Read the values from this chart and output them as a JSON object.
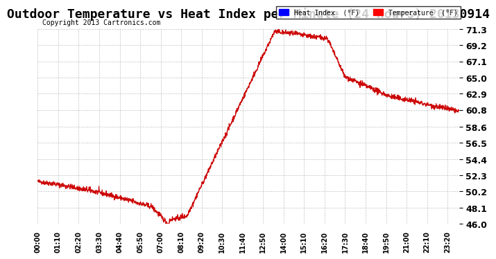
{
  "title": "Outdoor Temperature vs Heat Index per Minute (24 Hours) 20130914",
  "copyright": "Copyright 2013 Cartronics.com",
  "legend_labels": [
    "Heat Index  (°F)",
    "Temperature  (°F)"
  ],
  "legend_colors": [
    "blue",
    "red"
  ],
  "line_color": "#cc0000",
  "background_color": "#ffffff",
  "plot_bg_color": "#ffffff",
  "grid_color": "#aaaaaa",
  "ylim": [
    46.0,
    71.3
  ],
  "yticks": [
    46.0,
    48.1,
    50.2,
    52.3,
    54.4,
    56.5,
    58.6,
    60.8,
    62.9,
    65.0,
    67.1,
    69.2,
    71.3
  ],
  "xlabel_fontsize": 7,
  "ylabel_fontsize": 9,
  "title_fontsize": 13,
  "num_minutes": 1440
}
